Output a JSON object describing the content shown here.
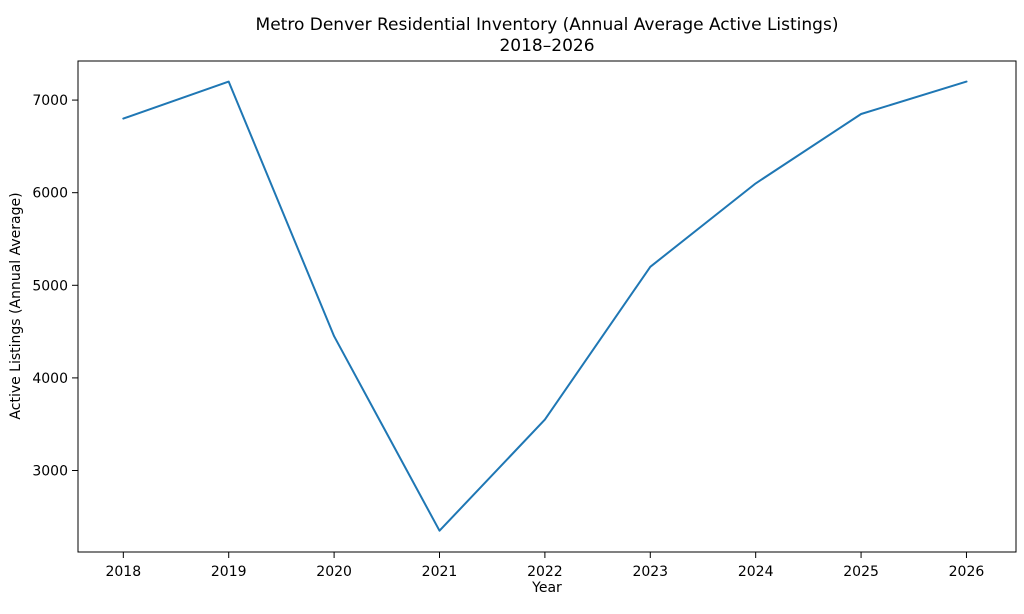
{
  "figure": {
    "background": "#ffffff",
    "title_line1": "Metro Denver Residential Inventory (Annual Average Active Listings)",
    "title_line2": "2018–2026"
  },
  "chart_data": {
    "type": "line",
    "title": "Metro Denver Residential Inventory (Annual Average Active Listings) 2018–2026",
    "xlabel": "Year",
    "ylabel": "Active Listings (Annual Average)",
    "x": [
      2018,
      2019,
      2020,
      2021,
      2022,
      2023,
      2024,
      2025,
      2026
    ],
    "series": [
      {
        "name": "Active Listings (Annual Average)",
        "values": [
          6800,
          7200,
          4450,
          2350,
          3550,
          5200,
          6100,
          6850,
          7200
        ]
      }
    ],
    "x_tick_labels": [
      "2018",
      "2019",
      "2020",
      "2021",
      "2022",
      "2023",
      "2024",
      "2025",
      "2026"
    ],
    "y_ticks": [
      3000,
      4000,
      5000,
      6000,
      7000
    ],
    "y_tick_labels": [
      "3000",
      "4000",
      "5000",
      "6000",
      "7000"
    ],
    "xlim": [
      2017.57,
      2026.47
    ],
    "ylim": [
      2120,
      7422
    ],
    "grid": false,
    "legend": null,
    "line_color": "#1f77b4",
    "line_width": 2,
    "axis_color": "#000000"
  }
}
